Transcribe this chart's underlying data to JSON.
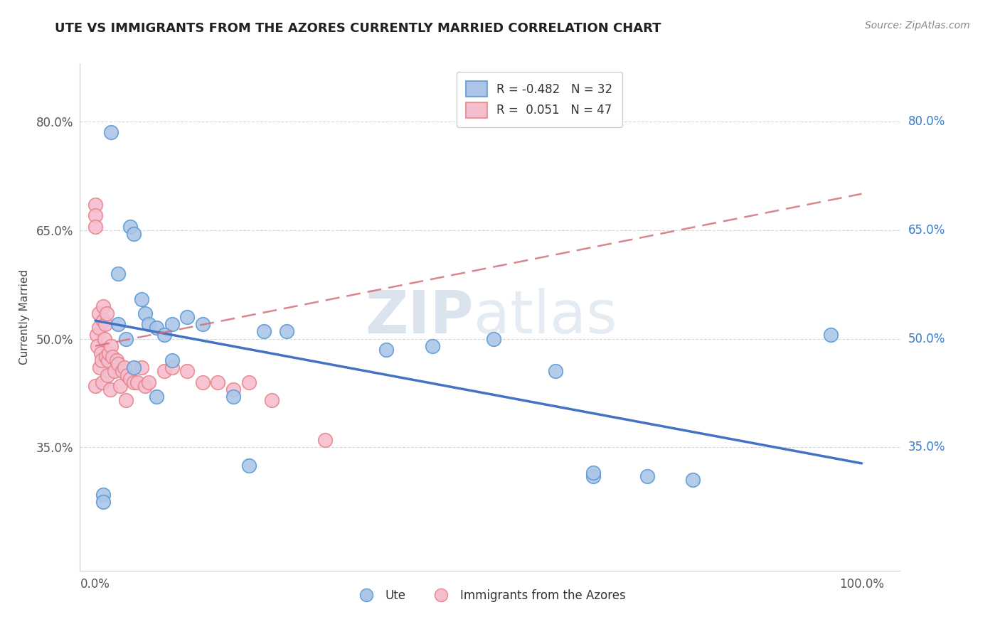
{
  "title": "UTE VS IMMIGRANTS FROM THE AZORES CURRENTLY MARRIED CORRELATION CHART",
  "source_text": "Source: ZipAtlas.com",
  "xlabel": "",
  "ylabel": "Currently Married",
  "xlim": [
    -0.02,
    1.05
  ],
  "ylim": [
    0.18,
    0.88
  ],
  "xtick_labels": [
    "0.0%",
    "100.0%"
  ],
  "xtick_positions": [
    0.0,
    1.0
  ],
  "ytick_labels": [
    "35.0%",
    "50.0%",
    "65.0%",
    "80.0%"
  ],
  "ytick_positions": [
    0.35,
    0.5,
    0.65,
    0.8
  ],
  "legend_R1": "-0.482",
  "legend_N1": "32",
  "legend_R2": "0.051",
  "legend_N2": "47",
  "blue_color": "#adc6e8",
  "pink_color": "#f5bece",
  "blue_edge_color": "#5b9bd5",
  "pink_edge_color": "#e8858a",
  "blue_line_color": "#4472c4",
  "pink_line_color": "#d4707a",
  "watermark_color": "#ccd8e8",
  "ute_x": [
    0.01,
    0.01,
    0.02,
    0.03,
    0.04,
    0.045,
    0.05,
    0.06,
    0.065,
    0.07,
    0.08,
    0.1,
    0.12,
    0.14,
    0.22,
    0.25,
    0.38,
    0.44,
    0.52,
    0.6,
    0.65,
    0.72,
    0.96,
    0.09,
    0.18,
    0.2,
    0.03,
    0.05,
    0.08,
    0.1,
    0.65,
    0.78
  ],
  "ute_y": [
    0.285,
    0.275,
    0.785,
    0.59,
    0.5,
    0.655,
    0.645,
    0.555,
    0.535,
    0.52,
    0.515,
    0.52,
    0.53,
    0.52,
    0.51,
    0.51,
    0.485,
    0.49,
    0.5,
    0.455,
    0.31,
    0.31,
    0.505,
    0.505,
    0.42,
    0.325,
    0.52,
    0.46,
    0.42,
    0.47,
    0.315,
    0.305
  ],
  "azores_x": [
    0.0,
    0.0,
    0.0,
    0.0,
    0.002,
    0.003,
    0.005,
    0.005,
    0.006,
    0.007,
    0.008,
    0.009,
    0.01,
    0.01,
    0.012,
    0.013,
    0.014,
    0.015,
    0.016,
    0.017,
    0.018,
    0.019,
    0.02,
    0.022,
    0.025,
    0.028,
    0.03,
    0.032,
    0.035,
    0.038,
    0.04,
    0.042,
    0.045,
    0.05,
    0.055,
    0.06,
    0.065,
    0.07,
    0.09,
    0.1,
    0.12,
    0.14,
    0.16,
    0.18,
    0.2,
    0.23,
    0.3
  ],
  "azores_y": [
    0.685,
    0.67,
    0.655,
    0.435,
    0.505,
    0.49,
    0.535,
    0.515,
    0.46,
    0.48,
    0.47,
    0.44,
    0.545,
    0.525,
    0.5,
    0.52,
    0.475,
    0.535,
    0.45,
    0.47,
    0.48,
    0.43,
    0.49,
    0.475,
    0.455,
    0.47,
    0.465,
    0.435,
    0.455,
    0.46,
    0.415,
    0.45,
    0.445,
    0.44,
    0.44,
    0.46,
    0.435,
    0.44,
    0.455,
    0.46,
    0.455,
    0.44,
    0.44,
    0.43,
    0.44,
    0.415,
    0.36
  ],
  "ute_line_x0": 0.0,
  "ute_line_x1": 1.0,
  "ute_line_y0": 0.525,
  "ute_line_y1": 0.328,
  "azores_line_x0": 0.0,
  "azores_line_x1": 1.0,
  "azores_line_y0": 0.49,
  "azores_line_y1": 0.7
}
